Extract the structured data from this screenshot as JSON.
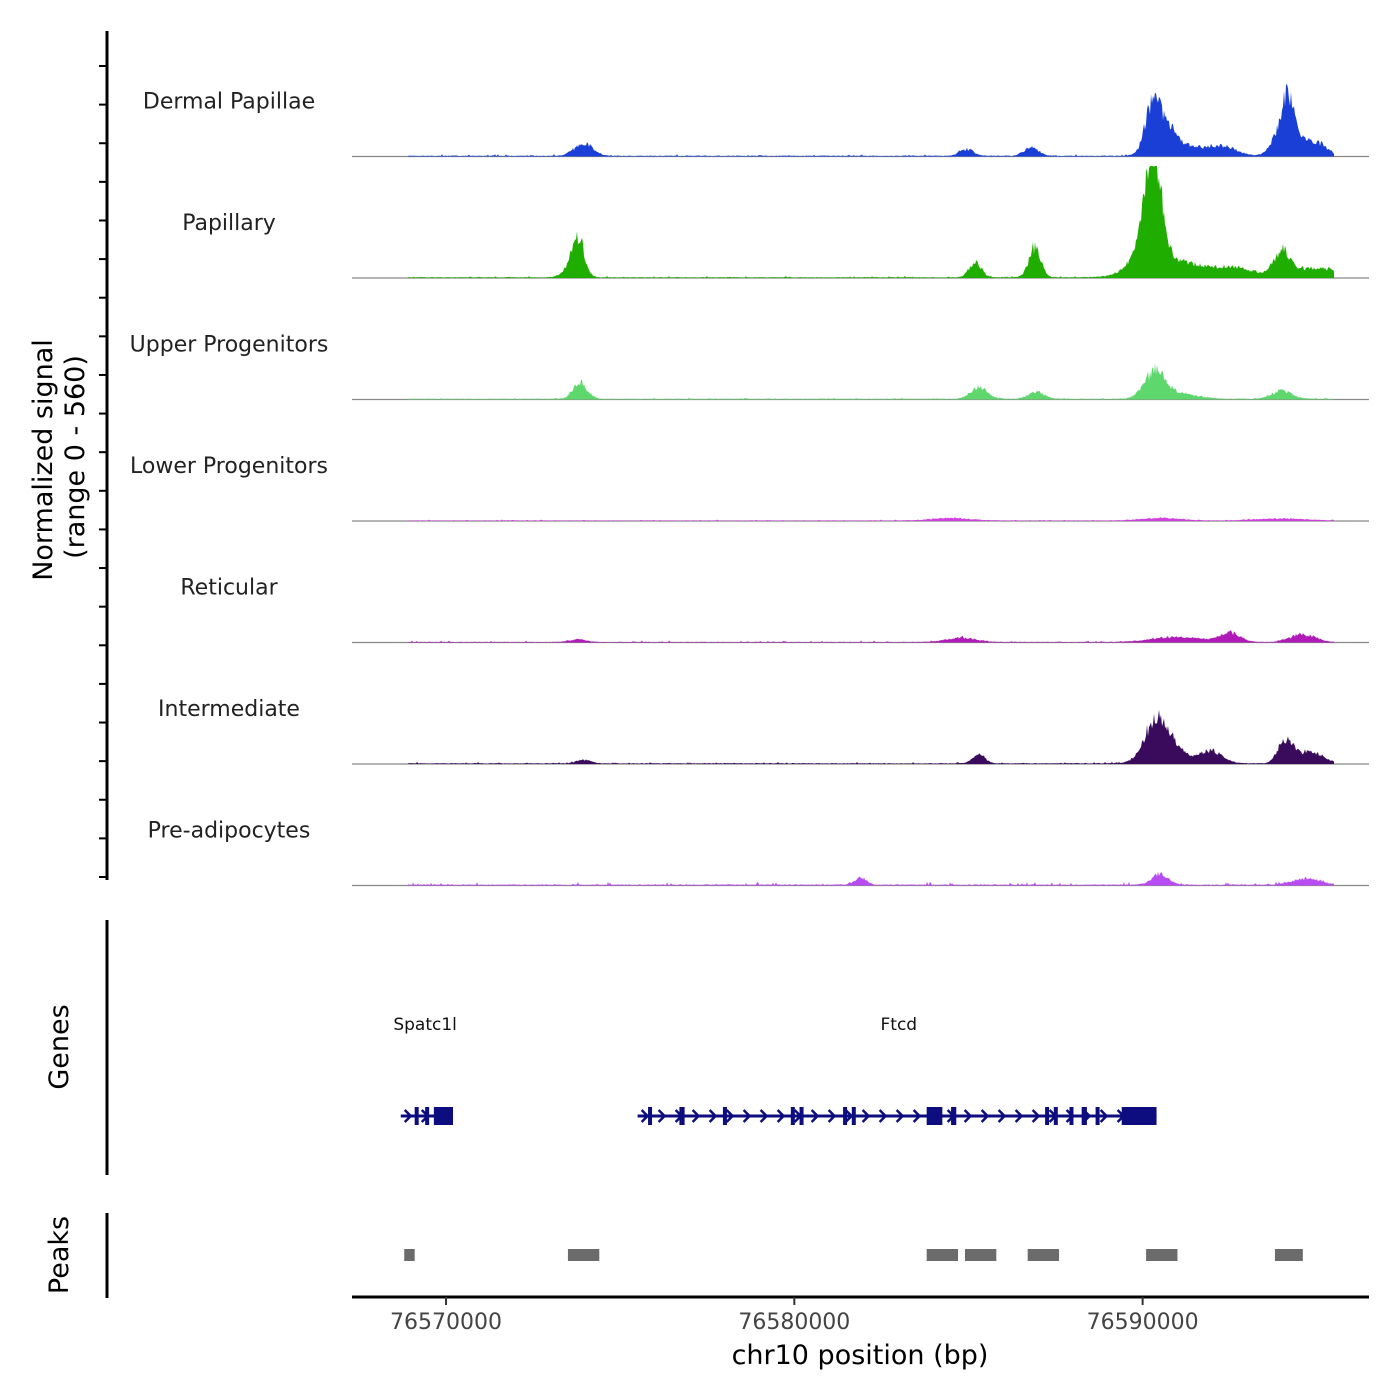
{
  "chart_data": {
    "type": "area",
    "title": "",
    "xlabel": "chr10 position (bp)",
    "ylabel_line1": "Normalized signal",
    "ylabel_line2": "(range 0 - 560)",
    "signal_range": [
      0,
      560
    ],
    "xlim": [
      76567300,
      76596500
    ],
    "data_start": 76568900,
    "data_end": 76595500,
    "x_ticks": [
      {
        "value": 76570000,
        "label": "76570000"
      },
      {
        "value": 76580000,
        "label": "76580000"
      },
      {
        "value": 76590000,
        "label": "76590000"
      }
    ],
    "tracks": [
      {
        "name": "Dermal Papillae",
        "color": "#1a3fd6",
        "base": 3,
        "noise": 5,
        "peaks": [
          [
            76573950,
            60,
            9
          ],
          [
            76584950,
            32,
            7
          ],
          [
            76586800,
            45,
            7
          ],
          [
            76590300,
            230,
            8
          ],
          [
            76590700,
            120,
            10
          ],
          [
            76591500,
            42,
            20
          ],
          [
            76592400,
            35,
            12
          ],
          [
            76593900,
            95,
            8
          ],
          [
            76594200,
            260,
            6
          ],
          [
            76594600,
            70,
            8
          ],
          [
            76595100,
            55,
            8
          ]
        ]
      },
      {
        "name": "Papillary",
        "color": "#1fad00",
        "base": 3,
        "noise": 4,
        "peaks": [
          [
            76573800,
            170,
            6
          ],
          [
            76573600,
            45,
            8
          ],
          [
            76585200,
            75,
            6
          ],
          [
            76586900,
            150,
            6
          ],
          [
            76590300,
            480,
            8
          ],
          [
            76590100,
            110,
            14
          ],
          [
            76590900,
            75,
            30
          ],
          [
            76592700,
            40,
            20
          ],
          [
            76594000,
            135,
            8
          ],
          [
            76594700,
            45,
            10
          ],
          [
            76595300,
            40,
            8
          ]
        ]
      },
      {
        "name": "Upper Progenitors",
        "color": "#5ed86c",
        "base": 3,
        "noise": 3,
        "peaks": [
          [
            76573850,
            80,
            7
          ],
          [
            76585300,
            60,
            8
          ],
          [
            76586950,
            35,
            8
          ],
          [
            76590350,
            125,
            10
          ],
          [
            76590900,
            30,
            20
          ],
          [
            76594000,
            40,
            10
          ]
        ]
      },
      {
        "name": "Lower Progenitors",
        "color": "#d13fe0",
        "base": 2,
        "noise": 3,
        "peaks": [
          [
            76584500,
            12,
            20
          ],
          [
            76590500,
            12,
            20
          ],
          [
            76594000,
            10,
            25
          ]
        ]
      },
      {
        "name": "Reticular",
        "color": "#b01ab8",
        "base": 2,
        "noise": 4,
        "peaks": [
          [
            76573800,
            14,
            8
          ],
          [
            76584800,
            20,
            15
          ],
          [
            76591000,
            25,
            25
          ],
          [
            76592500,
            45,
            10
          ],
          [
            76594600,
            40,
            12
          ]
        ]
      },
      {
        "name": "Intermediate",
        "color": "#3a0a5c",
        "base": 3,
        "noise": 4,
        "peaks": [
          [
            76573950,
            18,
            7
          ],
          [
            76585300,
            45,
            6
          ],
          [
            76590300,
            160,
            10
          ],
          [
            76590700,
            90,
            10
          ],
          [
            76591000,
            35,
            25
          ],
          [
            76592000,
            50,
            10
          ],
          [
            76594100,
            120,
            7
          ],
          [
            76594800,
            60,
            12
          ]
        ]
      },
      {
        "name": "Pre-adipocytes",
        "color": "#b84cf2",
        "base": 3,
        "noise": 8,
        "peaks": [
          [
            76581900,
            35,
            6
          ],
          [
            76590500,
            55,
            8
          ],
          [
            76594700,
            30,
            14
          ]
        ]
      }
    ],
    "genes": [
      {
        "name": "Spatc1l",
        "label_pos": 76569400,
        "start": 76568700,
        "end": 76570200,
        "strand": "+",
        "exons": [
          [
            76569100,
            76569200
          ],
          [
            76569400,
            76569500
          ],
          [
            76569650,
            76570200
          ]
        ]
      },
      {
        "name": "Ftcd",
        "label_pos": 76583000,
        "start": 76575500,
        "end": 76590400,
        "strand": "+",
        "exons": [
          [
            76575800,
            76575900
          ],
          [
            76576700,
            76576850
          ],
          [
            76577950,
            76578050
          ],
          [
            76579900,
            76580000
          ],
          [
            76580150,
            76580250
          ],
          [
            76581400,
            76581500
          ],
          [
            76581650,
            76581750
          ],
          [
            76583800,
            76584250
          ],
          [
            76584500,
            76584650
          ],
          [
            76587200,
            76587300
          ],
          [
            76587450,
            76587550
          ],
          [
            76587900,
            76588000
          ],
          [
            76588250,
            76588400
          ],
          [
            76588650,
            76588750
          ],
          [
            76589400,
            76590400
          ]
        ]
      }
    ],
    "peaks_track": [
      [
        76568800,
        76569100
      ],
      [
        76573500,
        76574400
      ],
      [
        76583800,
        76584700
      ],
      [
        76584900,
        76585800
      ],
      [
        76586700,
        76587600
      ],
      [
        76590100,
        76591000
      ],
      [
        76593800,
        76594600
      ]
    ],
    "panel_labels": {
      "genes": "Genes",
      "peaks": "Peaks"
    }
  }
}
